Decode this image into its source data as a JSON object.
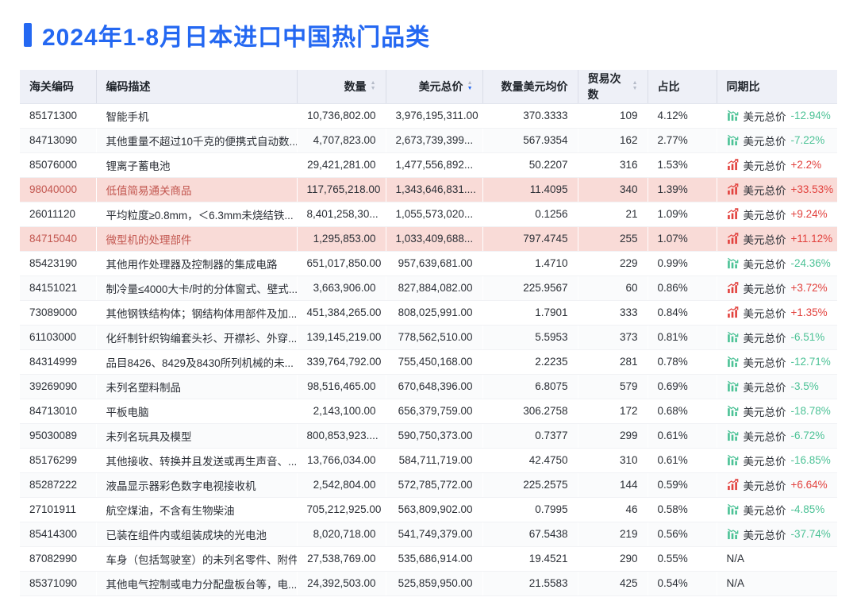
{
  "page": {
    "title": "2024年1-8月日本进口中国热门品类"
  },
  "colors": {
    "accent_blue": "#2468f2",
    "increase_red": "#e2423e",
    "decrease_green": "#4cc296",
    "highlight_row_bg": "#f9dbd7",
    "highlight_row_text": "#c2564f",
    "header_bg": "#eef0f7"
  },
  "table": {
    "columns": [
      {
        "key": "code",
        "label": "海关编码",
        "sortable": false,
        "sort": "none"
      },
      {
        "key": "desc",
        "label": "编码描述",
        "sortable": false,
        "sort": "none"
      },
      {
        "key": "qty",
        "label": "数量",
        "sortable": true,
        "sort": "none"
      },
      {
        "key": "usd",
        "label": "美元总价",
        "sortable": true,
        "sort": "desc"
      },
      {
        "key": "avg",
        "label": "数量美元均价",
        "sortable": false,
        "sort": "none"
      },
      {
        "key": "trades",
        "label": "贸易次数",
        "sortable": true,
        "sort": "none"
      },
      {
        "key": "share",
        "label": "占比",
        "sortable": false,
        "sort": "none"
      },
      {
        "key": "yoy",
        "label": "同期比",
        "sortable": false,
        "sort": "none"
      }
    ],
    "yoy_metric_label": "美元总价",
    "rows": [
      {
        "code": "85171300",
        "desc": "智能手机",
        "qty": "10,736,802.00",
        "usd": "3,976,195,311.00",
        "avg": "370.3333",
        "trades": "109",
        "share": "4.12%",
        "yoy": {
          "dir": "down",
          "value": "-12.94%"
        },
        "highlight": false
      },
      {
        "code": "84713090",
        "desc": "其他重量不超过10千克的便携式自动数...",
        "qty": "4,707,823.00",
        "usd": "2,673,739,399...",
        "avg": "567.9354",
        "trades": "162",
        "share": "2.77%",
        "yoy": {
          "dir": "down",
          "value": "-7.22%"
        },
        "highlight": false
      },
      {
        "code": "85076000",
        "desc": "锂离子蓄电池",
        "qty": "29,421,281.00",
        "usd": "1,477,556,892...",
        "avg": "50.2207",
        "trades": "316",
        "share": "1.53%",
        "yoy": {
          "dir": "up",
          "value": "+2.2%"
        },
        "highlight": false
      },
      {
        "code": "98040000",
        "desc": "低值简易通关商品",
        "qty": "117,765,218.00",
        "usd": "1,343,646,831....",
        "avg": "11.4095",
        "trades": "340",
        "share": "1.39%",
        "yoy": {
          "dir": "up",
          "value": "+33.53%"
        },
        "highlight": true
      },
      {
        "code": "26011120",
        "desc": "平均粒度≥0.8mm，＜6.3mm未烧结铁...",
        "qty": "8,401,258,30...",
        "usd": "1,055,573,020...",
        "avg": "0.1256",
        "trades": "21",
        "share": "1.09%",
        "yoy": {
          "dir": "up",
          "value": "+9.24%"
        },
        "highlight": false
      },
      {
        "code": "84715040",
        "desc": "微型机的处理部件",
        "qty": "1,295,853.00",
        "usd": "1,033,409,688...",
        "avg": "797.4745",
        "trades": "255",
        "share": "1.07%",
        "yoy": {
          "dir": "up",
          "value": "+11.12%"
        },
        "highlight": true
      },
      {
        "code": "85423190",
        "desc": "其他用作处理器及控制器的集成电路",
        "qty": "651,017,850.00",
        "usd": "957,639,681.00",
        "avg": "1.4710",
        "trades": "229",
        "share": "0.99%",
        "yoy": {
          "dir": "down",
          "value": "-24.36%"
        },
        "highlight": false
      },
      {
        "code": "84151021",
        "desc": "制冷量≤4000大卡/时的分体窗式、壁式...",
        "qty": "3,663,906.00",
        "usd": "827,884,082.00",
        "avg": "225.9567",
        "trades": "60",
        "share": "0.86%",
        "yoy": {
          "dir": "up",
          "value": "+3.72%"
        },
        "highlight": false
      },
      {
        "code": "73089000",
        "desc": "其他钢铁结构体；钢结构体用部件及加...",
        "qty": "451,384,265.00",
        "usd": "808,025,991.00",
        "avg": "1.7901",
        "trades": "333",
        "share": "0.84%",
        "yoy": {
          "dir": "up",
          "value": "+1.35%"
        },
        "highlight": false
      },
      {
        "code": "61103000",
        "desc": "化纤制针织钩编套头衫、开襟衫、外穿...",
        "qty": "139,145,219.00",
        "usd": "778,562,510.00",
        "avg": "5.5953",
        "trades": "373",
        "share": "0.81%",
        "yoy": {
          "dir": "down",
          "value": "-6.51%"
        },
        "highlight": false
      },
      {
        "code": "84314999",
        "desc": "品目8426、8429及8430所列机械的未...",
        "qty": "339,764,792.00",
        "usd": "755,450,168.00",
        "avg": "2.2235",
        "trades": "281",
        "share": "0.78%",
        "yoy": {
          "dir": "down",
          "value": "-12.71%"
        },
        "highlight": false
      },
      {
        "code": "39269090",
        "desc": "未列名塑料制品",
        "qty": "98,516,465.00",
        "usd": "670,648,396.00",
        "avg": "6.8075",
        "trades": "579",
        "share": "0.69%",
        "yoy": {
          "dir": "down",
          "value": "-3.5%"
        },
        "highlight": false
      },
      {
        "code": "84713010",
        "desc": "平板电脑",
        "qty": "2,143,100.00",
        "usd": "656,379,759.00",
        "avg": "306.2758",
        "trades": "172",
        "share": "0.68%",
        "yoy": {
          "dir": "down",
          "value": "-18.78%"
        },
        "highlight": false
      },
      {
        "code": "95030089",
        "desc": "未列名玩具及模型",
        "qty": "800,853,923....",
        "usd": "590,750,373.00",
        "avg": "0.7377",
        "trades": "299",
        "share": "0.61%",
        "yoy": {
          "dir": "down",
          "value": "-6.72%"
        },
        "highlight": false
      },
      {
        "code": "85176299",
        "desc": "其他接收、转换并且发送或再生声音、...",
        "qty": "13,766,034.00",
        "usd": "584,711,719.00",
        "avg": "42.4750",
        "trades": "310",
        "share": "0.61%",
        "yoy": {
          "dir": "down",
          "value": "-16.85%"
        },
        "highlight": false
      },
      {
        "code": "85287222",
        "desc": "液晶显示器彩色数字电视接收机",
        "qty": "2,542,804.00",
        "usd": "572,785,772.00",
        "avg": "225.2575",
        "trades": "144",
        "share": "0.59%",
        "yoy": {
          "dir": "up",
          "value": "+6.64%"
        },
        "highlight": false
      },
      {
        "code": "27101911",
        "desc": "航空煤油，不含有生物柴油",
        "qty": "705,212,925.00",
        "usd": "563,809,902.00",
        "avg": "0.7995",
        "trades": "46",
        "share": "0.58%",
        "yoy": {
          "dir": "down",
          "value": "-4.85%"
        },
        "highlight": false
      },
      {
        "code": "85414300",
        "desc": "已装在组件内或组装成块的光电池",
        "qty": "8,020,718.00",
        "usd": "541,749,379.00",
        "avg": "67.5438",
        "trades": "219",
        "share": "0.56%",
        "yoy": {
          "dir": "down",
          "value": "-37.74%"
        },
        "highlight": false
      },
      {
        "code": "87082990",
        "desc": "车身（包括驾驶室）的未列名零件、附件",
        "qty": "27,538,769.00",
        "usd": "535,686,914.00",
        "avg": "19.4521",
        "trades": "290",
        "share": "0.55%",
        "yoy": {
          "dir": "na",
          "value": "N/A"
        },
        "highlight": false
      },
      {
        "code": "85371090",
        "desc": "其他电气控制或电力分配盘板台等，电...",
        "qty": "24,392,503.00",
        "usd": "525,859,950.00",
        "avg": "21.5583",
        "trades": "425",
        "share": "0.54%",
        "yoy": {
          "dir": "na",
          "value": "N/A"
        },
        "highlight": false
      }
    ]
  }
}
